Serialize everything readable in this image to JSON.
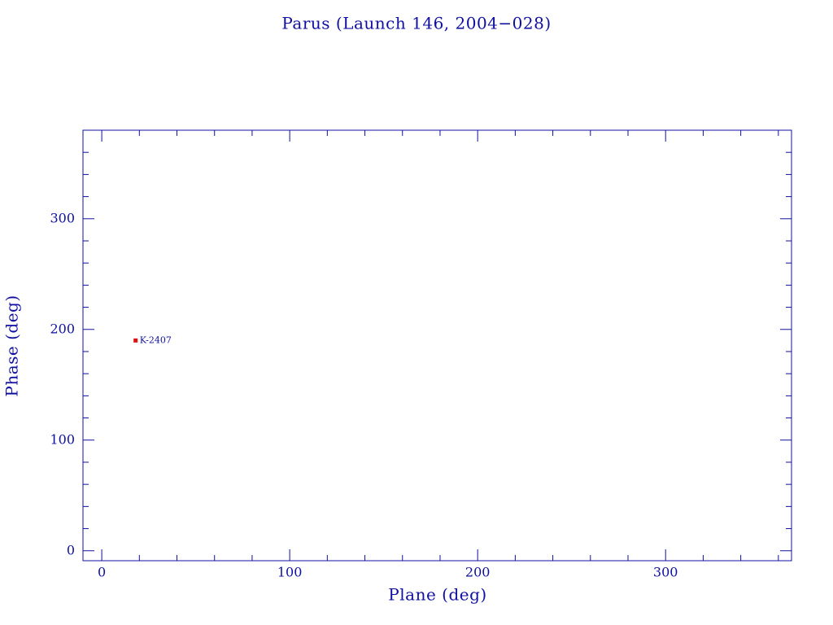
{
  "chart_data": {
    "type": "scatter",
    "title": "Parus (Launch 146, 2004−028)",
    "x_label": "Plane (deg)",
    "y_label": "Phase (deg)",
    "xlim": [
      -10,
      367
    ],
    "ylim": [
      -9,
      380
    ],
    "xticks": [
      0,
      100,
      200,
      300
    ],
    "yticks": [
      0,
      100,
      200,
      300
    ],
    "xminorticks": [
      20,
      40,
      60,
      80,
      120,
      140,
      160,
      180,
      220,
      240,
      260,
      280,
      320,
      340,
      360
    ],
    "yminorticks": [
      20,
      40,
      60,
      80,
      120,
      140,
      160,
      180,
      220,
      240,
      260,
      280,
      320,
      340,
      360
    ],
    "series": [
      {
        "name": "K-2407",
        "color": "#e01010",
        "x": [
          18
        ],
        "values": [
          190
        ]
      }
    ],
    "axis_color": "#1010a0"
  }
}
